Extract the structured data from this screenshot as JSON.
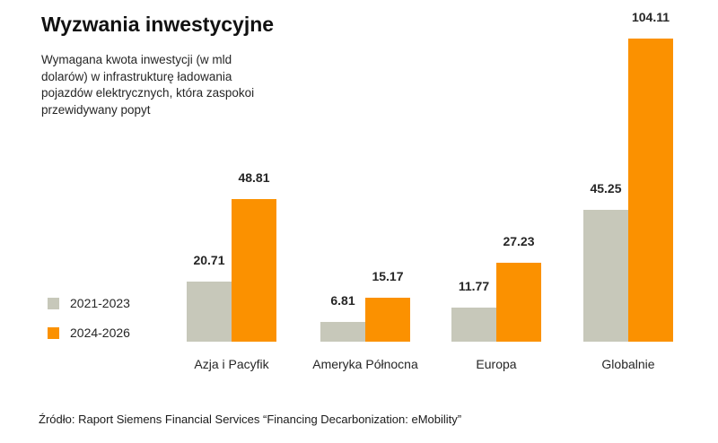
{
  "title": "Wyzwania inwestycyjne",
  "subtitle_lines": [
    "Wymagana kwota inwestycji (w mld",
    "dolarów) w infrastrukturę ładowania",
    "pojazdów elektrycznych, która zaspokoi",
    "przewidywany popyt"
  ],
  "source": "Źródło: Raport Siemens Financial Services “Financing Decarbonization: eMobility”",
  "colors": {
    "series_2021_2023": "#c7c8ba",
    "series_2024_2026": "#fb9100",
    "text": "#262626",
    "background": "#ffffff"
  },
  "chart_data": {
    "type": "bar",
    "title": "Wyzwania inwestycyjne",
    "subtitle": "Wymagana kwota inwestycji (w mld dolarów) w infrastrukturę ładowania pojazdów elektrycznych, która zaspokoi przewidywany popyt",
    "categories": [
      "Azja i Pacyfik",
      "Ameryka Północna",
      "Europa",
      "Globalnie"
    ],
    "series": [
      {
        "name": "2021-2023",
        "color": "#c7c8ba",
        "values": [
          20.71,
          6.81,
          11.77,
          45.25
        ]
      },
      {
        "name": "2024-2026",
        "color": "#fb9100",
        "values": [
          48.81,
          15.17,
          27.23,
          104.11
        ]
      }
    ],
    "value_labels_shown": true,
    "xlabel": "",
    "ylabel": "",
    "ylim": [
      0,
      110
    ],
    "grid": false,
    "legend_position": "left-middle"
  }
}
